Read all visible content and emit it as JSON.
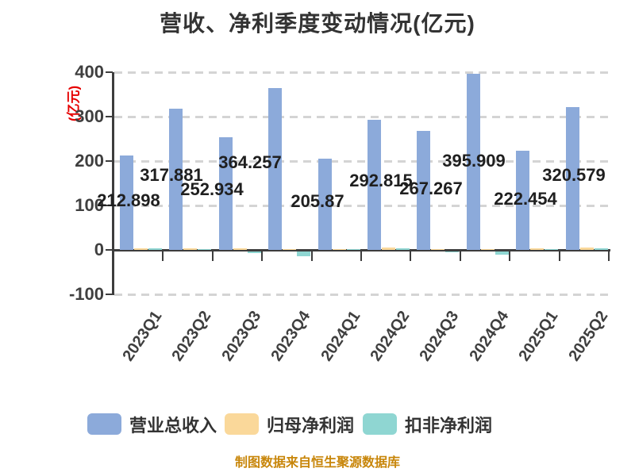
{
  "title": "营收、净利季度变动情况(亿元)",
  "y_axis": {
    "unit_label": "(亿元)",
    "tick_labels": [
      "400",
      "300",
      "200",
      "100",
      "0",
      "-100"
    ],
    "max": 400,
    "min": -100,
    "interval": 100
  },
  "footer": "制图数据来自恒生聚源数据库",
  "colors": {
    "revenue": "#8caada",
    "net_profit": "#fad89a",
    "non_gaap_profit": "#8fd6d2",
    "axis": "#3d3d3d",
    "grid": "#d4d4d4",
    "title_text": "#333333",
    "data_label_text": "#1f1f1f",
    "unit_label_red": "#e60000",
    "footer_orange": "#c8860a",
    "background": "#ffffff"
  },
  "legend": [
    {
      "label": "营业总收入",
      "color": "#8caada"
    },
    {
      "label": "归母净利润",
      "color": "#fad89a"
    },
    {
      "label": "扣非净利润",
      "color": "#8fd6d2"
    }
  ],
  "chart_data": {
    "type": "bar",
    "title": "营收、净利季度变动情况(亿元)",
    "ylabel": "(亿元)",
    "ylim": [
      -100,
      400
    ],
    "grid": true,
    "grid_style": "dashed",
    "legend_position": "bottom",
    "categories": [
      "2023Q1",
      "2023Q2",
      "2023Q3",
      "2023Q4",
      "2024Q1",
      "2024Q2",
      "2024Q3",
      "2024Q4",
      "2025Q1",
      "2025Q2"
    ],
    "series": [
      {
        "name": "营业总收入",
        "color": "#8caada",
        "values": [
          212.898,
          317.881,
          252.934,
          364.257,
          205.87,
          292.815,
          267.267,
          395.909,
          222.454,
          320.579
        ],
        "labels_shown": true
      },
      {
        "name": "归母净利润",
        "color": "#fad89a",
        "values": [
          3.6,
          3.6,
          3.6,
          1.8,
          1.8,
          5.4,
          1.8,
          1.8,
          3.6,
          5.4
        ],
        "estimated": true,
        "labels_shown": false
      },
      {
        "name": "扣非净利润",
        "color": "#8fd6d2",
        "values": [
          3.6,
          1.8,
          -3.6,
          -10.7,
          1.8,
          3.6,
          -1.8,
          -7.1,
          1.8,
          3.6
        ],
        "estimated": true,
        "labels_shown": false
      }
    ]
  }
}
